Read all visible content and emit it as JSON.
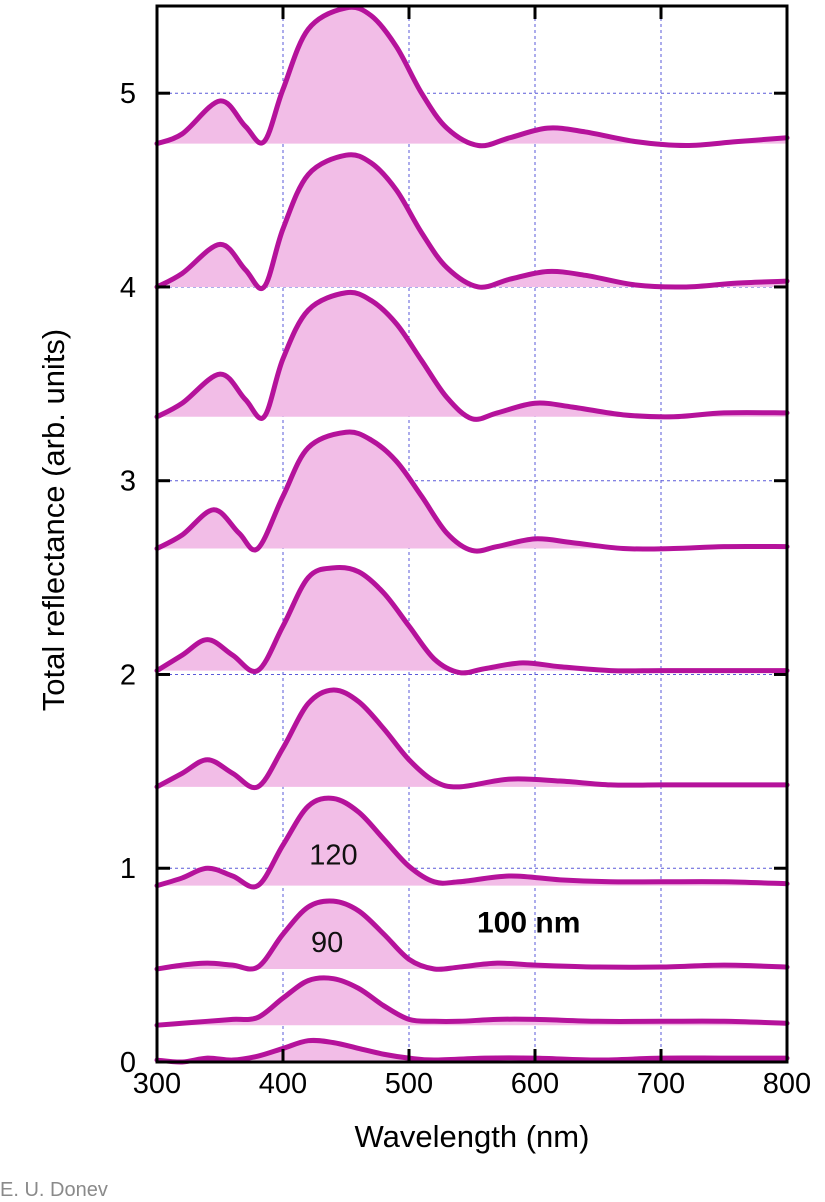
{
  "credit": "E. U. Donev",
  "chart_data": {
    "type": "line",
    "title": "",
    "xlabel": "Wavelength (nm)",
    "ylabel": "Total reflectance (arb. units)",
    "xlim": [
      300,
      800
    ],
    "ylim": [
      0,
      5.45
    ],
    "xticks": [
      300,
      400,
      500,
      600,
      700,
      800
    ],
    "yticks": [
      0,
      1,
      2,
      3,
      4,
      5
    ],
    "grid": true,
    "grid_style": "dashed-blue",
    "line_color": "#b5129b",
    "fill_color": "#f2bde7",
    "annotations": [
      {
        "text": "120",
        "x": 440,
        "y": 1.07
      },
      {
        "text": "90",
        "x": 435,
        "y": 0.62
      },
      {
        "text": "100 nm",
        "x": 595,
        "y": 0.72,
        "bold": true
      }
    ],
    "series": [
      {
        "offset": 0.0,
        "x": [
          300,
          320,
          340,
          360,
          380,
          400,
          420,
          440,
          460,
          480,
          500,
          520,
          560,
          600,
          650,
          700,
          750,
          800
        ],
        "values": [
          0.01,
          0.0,
          0.02,
          0.01,
          0.03,
          0.07,
          0.11,
          0.1,
          0.07,
          0.04,
          0.02,
          0.01,
          0.02,
          0.02,
          0.01,
          0.02,
          0.02,
          0.02
        ]
      },
      {
        "offset": 0.19,
        "x": [
          300,
          320,
          340,
          360,
          380,
          400,
          420,
          440,
          460,
          480,
          500,
          520,
          540,
          570,
          600,
          650,
          700,
          750,
          800
        ],
        "values": [
          0.19,
          0.2,
          0.21,
          0.22,
          0.23,
          0.33,
          0.42,
          0.43,
          0.38,
          0.29,
          0.22,
          0.21,
          0.21,
          0.22,
          0.22,
          0.21,
          0.21,
          0.21,
          0.2
        ]
      },
      {
        "offset": 0.48,
        "x": [
          300,
          320,
          340,
          360,
          380,
          400,
          420,
          440,
          460,
          480,
          500,
          520,
          540,
          570,
          600,
          650,
          700,
          750,
          800
        ],
        "values": [
          0.48,
          0.5,
          0.51,
          0.5,
          0.49,
          0.66,
          0.8,
          0.83,
          0.78,
          0.66,
          0.53,
          0.48,
          0.49,
          0.51,
          0.5,
          0.49,
          0.49,
          0.5,
          0.49
        ]
      },
      {
        "offset": 0.91,
        "x": [
          300,
          320,
          340,
          360,
          380,
          400,
          420,
          440,
          460,
          480,
          500,
          520,
          540,
          580,
          620,
          660,
          700,
          750,
          800
        ],
        "values": [
          0.91,
          0.95,
          1.0,
          0.96,
          0.91,
          1.12,
          1.32,
          1.36,
          1.29,
          1.15,
          1.01,
          0.93,
          0.93,
          0.96,
          0.94,
          0.93,
          0.93,
          0.93,
          0.92
        ]
      },
      {
        "offset": 1.42,
        "x": [
          300,
          320,
          340,
          360,
          380,
          400,
          420,
          440,
          460,
          480,
          500,
          520,
          540,
          580,
          620,
          660,
          700,
          750,
          800
        ],
        "values": [
          1.42,
          1.49,
          1.56,
          1.49,
          1.42,
          1.62,
          1.85,
          1.92,
          1.86,
          1.72,
          1.56,
          1.45,
          1.42,
          1.46,
          1.45,
          1.43,
          1.43,
          1.43,
          1.43
        ]
      },
      {
        "offset": 2.02,
        "x": [
          300,
          320,
          340,
          360,
          380,
          400,
          420,
          440,
          460,
          480,
          500,
          520,
          540,
          560,
          590,
          620,
          660,
          700,
          750,
          800
        ],
        "values": [
          2.02,
          2.1,
          2.18,
          2.1,
          2.02,
          2.25,
          2.5,
          2.55,
          2.53,
          2.42,
          2.25,
          2.08,
          2.01,
          2.03,
          2.06,
          2.04,
          2.02,
          2.02,
          2.02,
          2.02
        ]
      },
      {
        "offset": 2.65,
        "x": [
          300,
          320,
          345,
          365,
          380,
          400,
          420,
          450,
          470,
          490,
          510,
          530,
          550,
          570,
          600,
          630,
          670,
          710,
          750,
          800
        ],
        "values": [
          2.65,
          2.72,
          2.85,
          2.73,
          2.65,
          2.92,
          3.17,
          3.25,
          3.21,
          3.1,
          2.92,
          2.73,
          2.64,
          2.66,
          2.7,
          2.68,
          2.65,
          2.65,
          2.66,
          2.66
        ]
      },
      {
        "offset": 3.33,
        "x": [
          300,
          320,
          350,
          370,
          385,
          400,
          420,
          450,
          470,
          490,
          510,
          530,
          550,
          570,
          600,
          630,
          670,
          710,
          750,
          800
        ],
        "values": [
          3.33,
          3.4,
          3.55,
          3.42,
          3.33,
          3.63,
          3.88,
          3.97,
          3.93,
          3.81,
          3.62,
          3.43,
          3.32,
          3.35,
          3.4,
          3.38,
          3.34,
          3.33,
          3.35,
          3.35
        ]
      },
      {
        "offset": 4.0,
        "x": [
          300,
          320,
          350,
          370,
          385,
          400,
          420,
          450,
          470,
          490,
          510,
          530,
          555,
          580,
          610,
          640,
          680,
          720,
          760,
          800
        ],
        "values": [
          4.0,
          4.07,
          4.22,
          4.09,
          4.0,
          4.3,
          4.58,
          4.68,
          4.64,
          4.5,
          4.28,
          4.1,
          4.0,
          4.04,
          4.08,
          4.06,
          4.01,
          4.0,
          4.02,
          4.03
        ]
      },
      {
        "offset": 4.74,
        "x": [
          300,
          320,
          350,
          370,
          385,
          400,
          420,
          450,
          470,
          490,
          510,
          530,
          555,
          580,
          610,
          640,
          680,
          720,
          760,
          800
        ],
        "values": [
          4.74,
          4.79,
          4.96,
          4.83,
          4.75,
          5.02,
          5.33,
          5.44,
          5.4,
          5.24,
          5.0,
          4.82,
          4.73,
          4.77,
          4.82,
          4.8,
          4.75,
          4.73,
          4.75,
          4.77
        ]
      }
    ]
  }
}
